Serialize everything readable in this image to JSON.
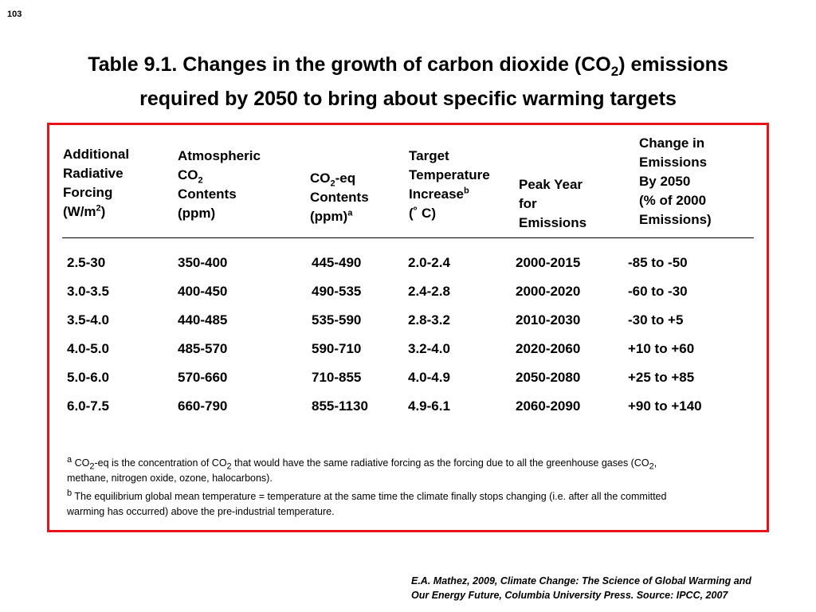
{
  "page_number": "103",
  "title": {
    "l1_pre": "Table 9.1.  Changes in the growth of carbon dioxide (CO",
    "l1_sub": "2",
    "l1_post": ") emissions",
    "l2": "required by 2050 to bring about specific warming targets"
  },
  "headers": {
    "forcing": {
      "l1": "Additional",
      "l2": "Radiative",
      "l3": "Forcing",
      "l4_pre": "(W/m",
      "l4_sup": "2",
      "l4_post": ")"
    },
    "co2": {
      "l1": "Atmospheric",
      "l2": "CO",
      "l2_sub": "2",
      "l3": "Contents",
      "l4": "(ppm)"
    },
    "co2eq": {
      "l1": "CO",
      "l1_sub": "2",
      "l1_post": "-eq",
      "l2": "Contents",
      "l3": "(ppm)",
      "l3_sup": "a"
    },
    "temp": {
      "l1": "Target",
      "l2": "Temperature",
      "l3": "Increase",
      "l3_sup": "b",
      "l4": "(˚  C)"
    },
    "peak": {
      "l1": "Peak Year",
      "l2": "for",
      "l3": "Emissions"
    },
    "change": {
      "l1": "Change in",
      "l2": "Emissions",
      "l3": "By 2050",
      "l4": "(% of 2000",
      "l5": "Emissions)"
    }
  },
  "rows": [
    [
      "2.5-30",
      "350-400",
      "445-490",
      "2.0-2.4",
      "2000-2015",
      "-85 to -50"
    ],
    [
      "3.0-3.5",
      "400-450",
      "490-535",
      "2.4-2.8",
      "2000-2020",
      "-60 to -30"
    ],
    [
      "3.5-4.0",
      "440-485",
      "535-590",
      "2.8-3.2",
      "2010-2030",
      "-30 to +5"
    ],
    [
      "4.0-5.0",
      "485-570",
      "590-710",
      "3.2-4.0",
      "2020-2060",
      "+10 to +60"
    ],
    [
      "5.0-6.0",
      "570-660",
      "710-855",
      "4.0-4.9",
      "2050-2080",
      "+25 to +85"
    ],
    [
      "6.0-7.5",
      "660-790",
      "855-1130",
      "4.9-6.1",
      "2060-2090",
      "+90 to +140"
    ]
  ],
  "footnotes": {
    "a": {
      "mark": "a",
      "t1": " CO",
      "s1": "2",
      "t2": "-eq is the concentration of CO",
      "s2": "2",
      "t3": " that would  have the same radiative forcing as the forcing due to all the greenhouse gases (CO",
      "s3": "2",
      "t4": ",",
      "line2": "methane, nitrogen oxide, ozone, halocarbons)."
    },
    "b": {
      "mark": "b",
      "line1": " The equilibrium global mean temperature = temperature at the same time the climate finally stops changing (i.e. after all the committed",
      "line2": "warming has occurred) above the pre-industrial temperature."
    }
  },
  "source": {
    "line1": "E.A. Mathez, 2009, Climate Change: The Science of Global Warming and",
    "line2": "Our Energy Future, Columbia University Press.  Source: IPCC, 2007"
  },
  "colors": {
    "frame": "#e8141c",
    "text": "#000000"
  }
}
